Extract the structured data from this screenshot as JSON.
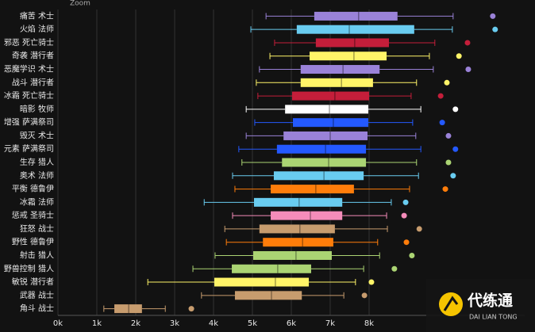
{
  "toolbar": "Zoom",
  "watermark": {
    "title": "代练通",
    "subtitle": "DAI LIAN TONG"
  },
  "chart_data": {
    "type": "box",
    "categories": [
      "痛苦 术士",
      "火焰 法师",
      "邪恶 死亡骑士",
      "奇袭 潜行者",
      "恶魔学识 术士",
      "战斗 潜行者",
      "冰霜 死亡骑士",
      "暗影 牧师",
      "增强 萨满祭司",
      "毁灭 术士",
      "元素 萨满祭司",
      "生存 猎人",
      "奥术 法师",
      "平衡 德鲁伊",
      "冰霜 法师",
      "惩戒 圣骑士",
      "狂怒 战士",
      "野性 德鲁伊",
      "射击 猎人",
      "野兽控制 猎人",
      "敏锐 潜行者",
      "武器 战士",
      "角斗 战士"
    ],
    "boxes": [
      {
        "min": 5350,
        "q1": 6590,
        "median": 7730,
        "q3": 8730,
        "max": 10160,
        "outlier": 11180,
        "color": "#9a82d8"
      },
      {
        "min": 4960,
        "q1": 6140,
        "median": 7490,
        "q3": 9160,
        "max": 10140,
        "outlier": 11240,
        "color": "#69ccf0"
      },
      {
        "min": 5570,
        "q1": 6630,
        "median": 7630,
        "q3": 8510,
        "max": 9690,
        "outlier": 10530,
        "color": "#c41e3a"
      },
      {
        "min": 5450,
        "q1": 6470,
        "median": 7610,
        "q3": 8450,
        "max": 9550,
        "outlier": 10310,
        "color": "#fff468"
      },
      {
        "min": 5180,
        "q1": 6240,
        "median": 7330,
        "q3": 8270,
        "max": 9650,
        "outlier": 10550,
        "color": "#9a82d8"
      },
      {
        "min": 5100,
        "q1": 6240,
        "median": 7290,
        "q3": 8100,
        "max": 9220,
        "outlier": 10000,
        "color": "#fff468"
      },
      {
        "min": 5140,
        "q1": 6020,
        "median": 7120,
        "q3": 8000,
        "max": 9080,
        "outlier": 9840,
        "color": "#c41e3a"
      },
      {
        "min": 4840,
        "q1": 5840,
        "median": 6980,
        "q3": 7980,
        "max": 9330,
        "outlier": 10220,
        "color": "#ffffff"
      },
      {
        "min": 5060,
        "q1": 6040,
        "median": 7080,
        "q3": 7980,
        "max": 9120,
        "outlier": 9880,
        "color": "#2459ff"
      },
      {
        "min": 4840,
        "q1": 5800,
        "median": 7000,
        "q3": 7960,
        "max": 9200,
        "outlier": 10040,
        "color": "#9a82d8"
      },
      {
        "min": 4650,
        "q1": 5630,
        "median": 6880,
        "q3": 7920,
        "max": 9330,
        "outlier": 10220,
        "color": "#2459ff"
      },
      {
        "min": 4730,
        "q1": 5760,
        "median": 6960,
        "q3": 7920,
        "max": 9220,
        "outlier": 10040,
        "color": "#abd473"
      },
      {
        "min": 4490,
        "q1": 5550,
        "median": 6840,
        "q3": 7860,
        "max": 9270,
        "outlier": 10160,
        "color": "#69ccf0"
      },
      {
        "min": 4550,
        "q1": 5470,
        "median": 6630,
        "q3": 7610,
        "max": 9040,
        "outlier": 9960,
        "color": "#ff7d0a"
      },
      {
        "min": 3760,
        "q1": 5040,
        "median": 6200,
        "q3": 7310,
        "max": 8570,
        "outlier": 8940,
        "color": "#69ccf0"
      },
      {
        "min": 4490,
        "q1": 5470,
        "median": 6490,
        "q3": 7310,
        "max": 8450,
        "outlier": 8900,
        "color": "#f58cba"
      },
      {
        "min": 4290,
        "q1": 5180,
        "median": 6220,
        "q3": 7120,
        "max": 8470,
        "outlier": 9290,
        "color": "#c79c6e"
      },
      {
        "min": 4330,
        "q1": 5270,
        "median": 6290,
        "q3": 7080,
        "max": 8220,
        "outlier": 8960,
        "color": "#ff7d0a"
      },
      {
        "min": 4040,
        "q1": 5020,
        "median": 6120,
        "q3": 7040,
        "max": 8270,
        "outlier": 9100,
        "color": "#abd473"
      },
      {
        "min": 3470,
        "q1": 4470,
        "median": 5650,
        "q3": 6510,
        "max": 7860,
        "outlier": 8650,
        "color": "#abd473"
      },
      {
        "min": 2310,
        "q1": 4020,
        "median": 5590,
        "q3": 6450,
        "max": 7650,
        "outlier": 8060,
        "color": "#fff468"
      },
      {
        "min": 3690,
        "q1": 4550,
        "median": 5490,
        "q3": 6270,
        "max": 7350,
        "outlier": 7880,
        "color": "#c79c6e"
      },
      {
        "min": 1180,
        "q1": 1450,
        "median": 1820,
        "q3": 2160,
        "max": 2760,
        "outlier": 3430,
        "color": "#c79c6e"
      }
    ],
    "xlim": [
      0,
      12000
    ],
    "xticks": [
      {
        "value": 0,
        "label": "0k"
      },
      {
        "value": 1000,
        "label": "1k"
      },
      {
        "value": 2000,
        "label": "2k"
      },
      {
        "value": 3000,
        "label": "3k"
      },
      {
        "value": 4000,
        "label": "4k"
      },
      {
        "value": 5000,
        "label": "5k"
      },
      {
        "value": 6000,
        "label": "6k"
      },
      {
        "value": 7000,
        "label": "7k"
      },
      {
        "value": 8000,
        "label": "8k"
      }
    ],
    "grid": true
  }
}
